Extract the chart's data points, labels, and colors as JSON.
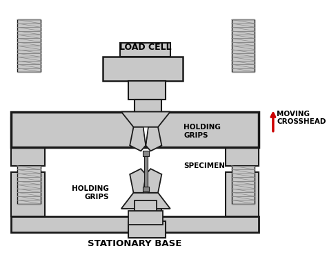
{
  "title": "STATIONARY BASE",
  "load_cell_label": "LOAD CELL",
  "moving_crosshead_label": "MOVING\nCROSSHEAD",
  "holding_grips_label_top": "HOLDING\nGRIPS",
  "holding_grips_label_bot": "HOLDING\nGRIPS",
  "specimen_label": "SPECIMEN",
  "bg_color": "#ffffff",
  "gray_fill": "#c8c8c8",
  "dark_outline": "#1a1a1a",
  "screw_fill": "#c8c8c8",
  "arrow_color": "#cc0000",
  "label_fontsize": 7.5,
  "title_fontsize": 9.0,
  "screw_thread_color": "#888888"
}
